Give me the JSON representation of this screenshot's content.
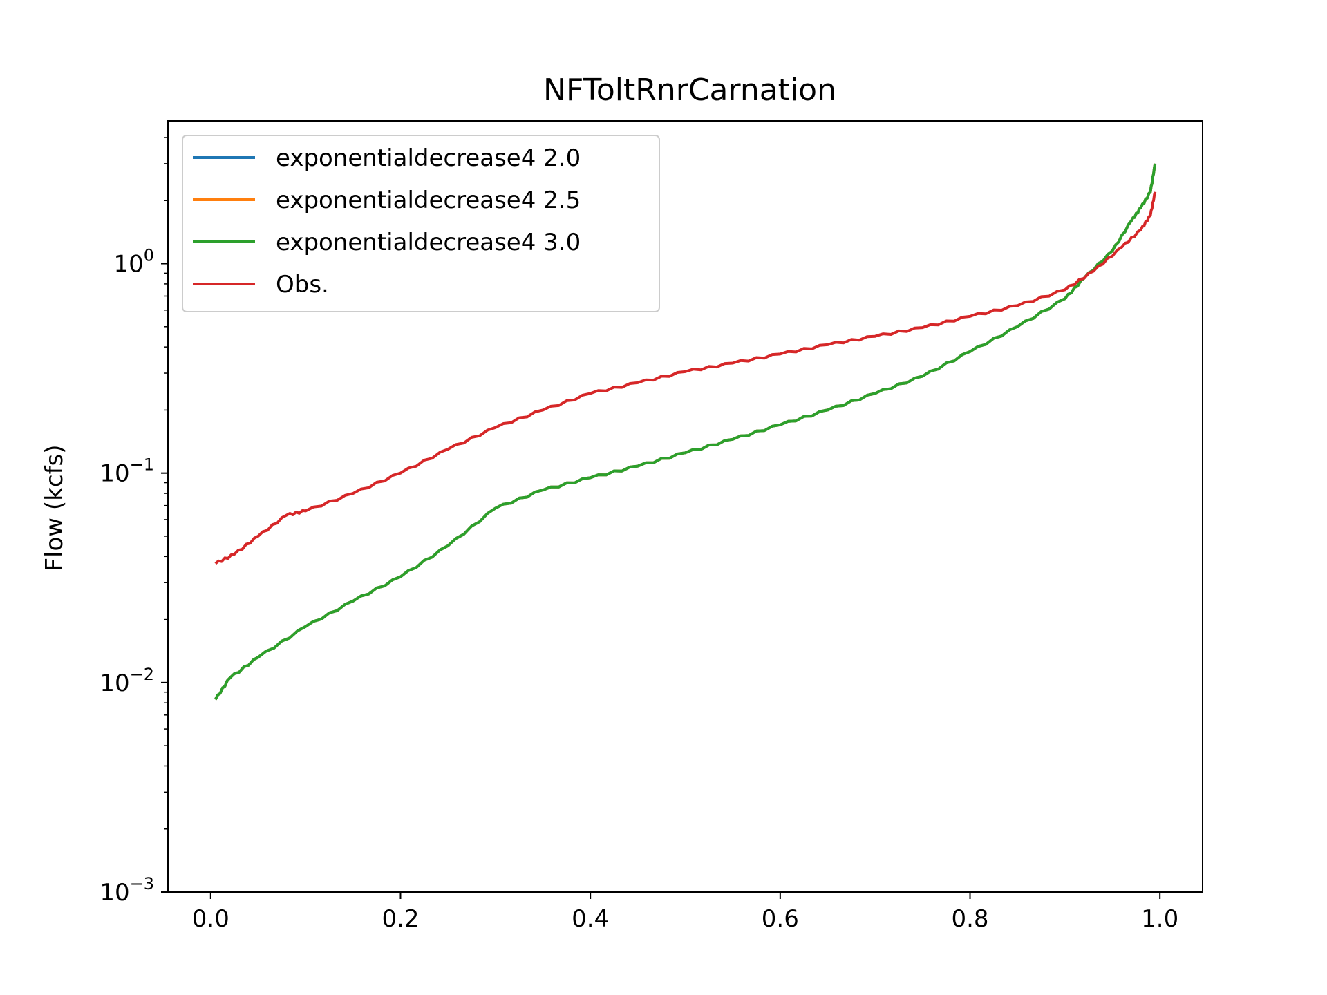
{
  "chart_data": {
    "type": "line",
    "title": "NFToltRnrCarnation",
    "xlabel": "",
    "ylabel": "Flow (kcfs)",
    "xlim": [
      -0.045,
      1.045
    ],
    "ylim": [
      0.001,
      4.8
    ],
    "yscale": "log",
    "grid": false,
    "legend_position": "top-left",
    "x_ticks": [
      {
        "value": 0.0,
        "label": "0.0"
      },
      {
        "value": 0.2,
        "label": "0.2"
      },
      {
        "value": 0.4,
        "label": "0.4"
      },
      {
        "value": 0.6,
        "label": "0.6"
      },
      {
        "value": 0.8,
        "label": "0.8"
      },
      {
        "value": 1.0,
        "label": "1.0"
      }
    ],
    "y_ticks": [
      {
        "value": 0.001,
        "base": "10",
        "exp": "−3"
      },
      {
        "value": 0.01,
        "base": "10",
        "exp": "−2"
      },
      {
        "value": 0.1,
        "base": "10",
        "exp": "−1"
      },
      {
        "value": 1,
        "base": "10",
        "exp": "0"
      }
    ],
    "series": [
      {
        "name": "exponentialdecrease4 2.0",
        "color": "#1f77b4",
        "x": [
          0.005,
          0.02,
          0.05,
          0.1,
          0.15,
          0.2,
          0.25,
          0.3,
          0.35,
          0.4,
          0.45,
          0.5,
          0.55,
          0.6,
          0.65,
          0.7,
          0.75,
          0.8,
          0.85,
          0.9,
          0.92,
          0.95,
          0.97,
          0.98,
          0.99,
          0.995
        ],
        "y": [
          0.0083,
          0.0105,
          0.0132,
          0.0185,
          0.0245,
          0.032,
          0.045,
          0.068,
          0.083,
          0.095,
          0.108,
          0.125,
          0.145,
          0.17,
          0.2,
          0.24,
          0.29,
          0.38,
          0.5,
          0.68,
          0.85,
          1.15,
          1.6,
          1.85,
          2.2,
          3.0
        ]
      },
      {
        "name": "exponentialdecrease4 2.5",
        "color": "#ff7f0e",
        "x": [
          0.005,
          0.02,
          0.05,
          0.1,
          0.15,
          0.2,
          0.25,
          0.3,
          0.35,
          0.4,
          0.45,
          0.5,
          0.55,
          0.6,
          0.65,
          0.7,
          0.75,
          0.8,
          0.85,
          0.9,
          0.92,
          0.95,
          0.97,
          0.98,
          0.99,
          0.995
        ],
        "y": [
          0.0083,
          0.0105,
          0.0132,
          0.0185,
          0.0245,
          0.032,
          0.045,
          0.068,
          0.083,
          0.095,
          0.108,
          0.125,
          0.145,
          0.17,
          0.2,
          0.24,
          0.29,
          0.38,
          0.5,
          0.68,
          0.85,
          1.15,
          1.6,
          1.85,
          2.2,
          3.0
        ]
      },
      {
        "name": "exponentialdecrease4 3.0",
        "color": "#2ca02c",
        "x": [
          0.005,
          0.02,
          0.05,
          0.1,
          0.15,
          0.2,
          0.25,
          0.3,
          0.35,
          0.4,
          0.45,
          0.5,
          0.55,
          0.6,
          0.65,
          0.7,
          0.75,
          0.8,
          0.85,
          0.9,
          0.92,
          0.95,
          0.97,
          0.98,
          0.99,
          0.995
        ],
        "y": [
          0.0083,
          0.0105,
          0.0132,
          0.0185,
          0.0245,
          0.032,
          0.045,
          0.068,
          0.083,
          0.095,
          0.108,
          0.125,
          0.145,
          0.17,
          0.2,
          0.24,
          0.29,
          0.38,
          0.5,
          0.68,
          0.85,
          1.15,
          1.6,
          1.85,
          2.2,
          3.0
        ]
      },
      {
        "name": "Obs.",
        "color": "#d62728",
        "x": [
          0.005,
          0.025,
          0.05,
          0.08,
          0.1,
          0.15,
          0.2,
          0.25,
          0.3,
          0.35,
          0.4,
          0.45,
          0.5,
          0.55,
          0.6,
          0.65,
          0.7,
          0.75,
          0.8,
          0.85,
          0.9,
          0.93,
          0.96,
          0.98,
          0.99,
          0.995
        ],
        "y": [
          0.037,
          0.041,
          0.05,
          0.063,
          0.066,
          0.08,
          0.1,
          0.13,
          0.165,
          0.2,
          0.24,
          0.27,
          0.305,
          0.335,
          0.37,
          0.41,
          0.45,
          0.495,
          0.56,
          0.63,
          0.75,
          0.92,
          1.2,
          1.45,
          1.7,
          2.2
        ]
      }
    ]
  }
}
